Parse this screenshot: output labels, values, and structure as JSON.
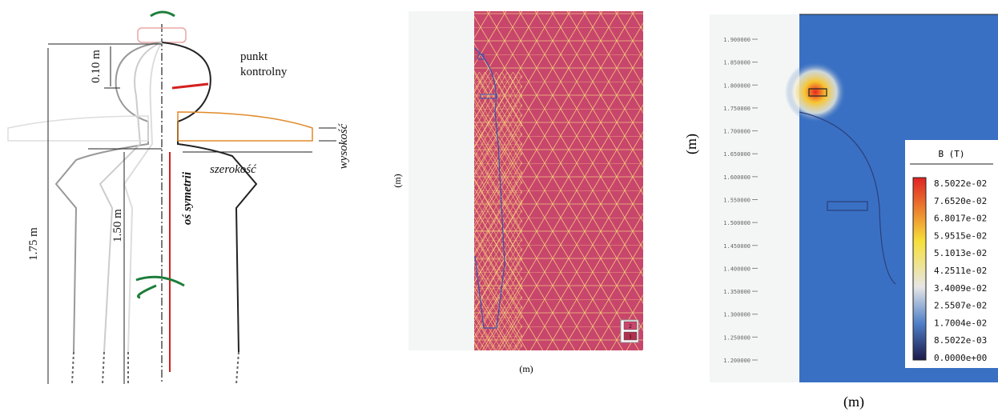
{
  "left": {
    "control_point": [
      "punkt",
      "kontrolny"
    ],
    "top_height": "0.10 m",
    "total_height": "1.75 m",
    "lower_height": "1.50 m",
    "axis": "oś symetrii",
    "width": "szerokość",
    "height": "wysokość"
  },
  "middle": {
    "y_label": "(m)",
    "x_label": "(m)",
    "legend": [
      "2",
      "1"
    ]
  },
  "right": {
    "y_label": "(m)",
    "x_label": "(m)",
    "y_tick_labels": [
      "1.900000",
      "1.850000",
      "1.800000",
      "1.750000",
      "1.700000",
      "1.650000",
      "1.600000",
      "1.550000",
      "1.500000",
      "1.450000",
      "1.400000",
      "1.350000",
      "1.300000",
      "1.250000",
      "1.200000"
    ],
    "colorbar": {
      "title": "B (T)",
      "labels": [
        "8.5022e-02",
        "7.6520e-02",
        "6.8017e-02",
        "5.9515e-02",
        "5.1013e-02",
        "4.2511e-02",
        "3.4009e-02",
        "2.5507e-02",
        "1.7004e-02",
        "8.5022e-03",
        "0.0000e+00"
      ]
    }
  }
}
